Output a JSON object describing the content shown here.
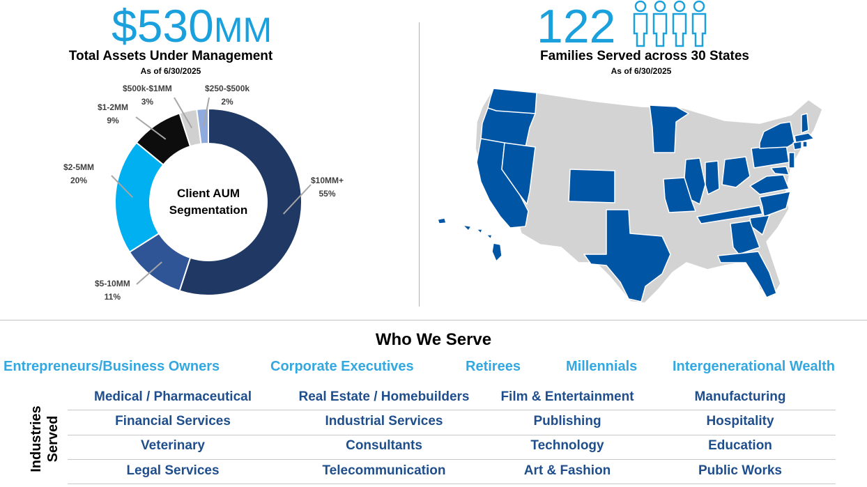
{
  "aum": {
    "value": "$530",
    "unit": "MM",
    "title": "Total Assets Under Management",
    "as_of": "As of 6/30/2025"
  },
  "families": {
    "value": "122",
    "title": "Families Served across 30 States",
    "as_of": "As of 6/30/2025",
    "person_icon_count": 4
  },
  "chart_data": {
    "type": "pie",
    "style": "donut",
    "center_label": [
      "Client AUM",
      "Segmentation"
    ],
    "slices": [
      {
        "name": "$10MM+",
        "value": 55,
        "label": "55%",
        "color": "#1f3864"
      },
      {
        "name": "$5-10MM",
        "value": 11,
        "label": "11%",
        "color": "#2f5597"
      },
      {
        "name": "$2-5MM",
        "value": 20,
        "label": "20%",
        "color": "#00b0f0"
      },
      {
        "name": "$1-2MM",
        "value": 9,
        "label": "9%",
        "color": "#0d0d0d"
      },
      {
        "name": "$500k-$1MM",
        "value": 3,
        "label": "3%",
        "color": "#d0d0d0"
      },
      {
        "name": "$250-$500k",
        "value": 2,
        "label": "2%",
        "color": "#8faadc"
      }
    ]
  },
  "who": {
    "title": "Who We Serve",
    "categories": [
      "Entrepreneurs/Business Owners",
      "Corporate Executives",
      "Retirees",
      "Millennials",
      "Intergenerational Wealth"
    ],
    "industries_label": [
      "Industries",
      "Served"
    ],
    "industries": [
      [
        "Medical / Pharmaceutical",
        "Real Estate / Homebuilders",
        "Film & Entertainment",
        "Manufacturing"
      ],
      [
        "Financial Services",
        "Industrial Services",
        "Publishing",
        "Hospitality"
      ],
      [
        "Veterinary",
        "Consultants",
        "Technology",
        "Education"
      ],
      [
        "Legal Services",
        "Telecommunication",
        "Art & Fashion",
        "Public Works"
      ]
    ]
  },
  "colors": {
    "accent_blue": "#1aa0dc",
    "served_state": "#0055a5",
    "other_state": "#d3d3d3",
    "industry_text": "#1f4e8c"
  }
}
